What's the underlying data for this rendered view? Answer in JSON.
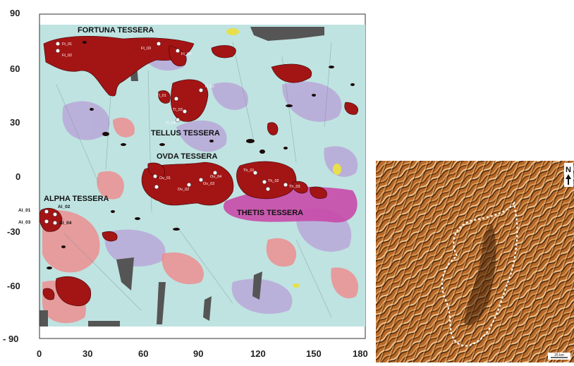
{
  "map": {
    "y_ticks": [
      "90",
      "60",
      "30",
      "0",
      "-30",
      "-60",
      "- 90"
    ],
    "x_ticks": [
      "0",
      "30",
      "60",
      "90",
      "120",
      "150",
      "180"
    ],
    "regions": [
      {
        "name": "FORTUNA TESSERA"
      },
      {
        "name": "TELLUS TESSERA"
      },
      {
        "name": "OVDA TESSERA"
      },
      {
        "name": "ALPHA TESSERA"
      },
      {
        "name": "THETIS TESSERA"
      }
    ],
    "sites_fortuna": [
      "Ft_01",
      "Ft_02",
      "Ft_03",
      "Ft_04"
    ],
    "sites_tellus": [
      "Tl_01",
      "Tl_02",
      "Tl_03",
      "Tl_04"
    ],
    "sites_ovda": [
      "Ov_01",
      "Ov_02",
      "Ov_03",
      "Ov_04"
    ],
    "sites_thetis": [
      "Th_01",
      "Th_02",
      "Th_03"
    ],
    "sites_alpha": [
      "Al_01",
      "Al_02",
      "Al_03",
      "Al_04"
    ],
    "colors": {
      "tessera": "#a31414",
      "plains_cyan": "#bfe3e1",
      "plains_lavender": "#b8a8d8",
      "pink": "#f08a8c",
      "magenta": "#c84aa8",
      "dark_gray": "#555555"
    }
  },
  "inset": {
    "north_label": "N",
    "scale_label": "25 km",
    "colors": {
      "base": "#b86a2a",
      "dark": "#4a2408",
      "light": "#f1c48a"
    }
  }
}
